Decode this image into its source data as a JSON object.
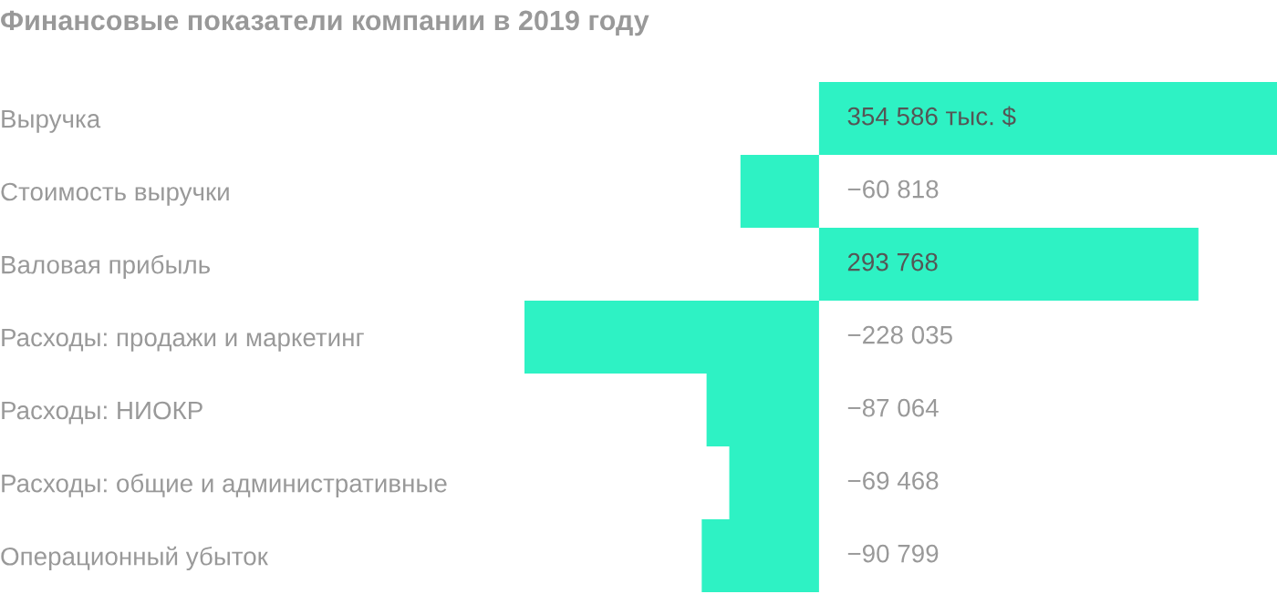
{
  "chart_data": {
    "type": "bar",
    "orientation": "horizontal",
    "title": "Финансовые показатели компании в 2019 году",
    "categories": [
      "Выручка",
      "Стоимость выручки",
      "Валовая прибыль",
      "Расходы: продажи и маркетинг",
      "Расходы: НИОКР",
      "Расходы: общие и административные",
      "Операционный убыток"
    ],
    "values": [
      354586,
      -60818,
      293768,
      -228035,
      -87064,
      -69468,
      -90799
    ],
    "value_labels": [
      "354 586 тыс. $",
      "−60 818",
      "293 768",
      "−228 035",
      "−87 064",
      "−69 468",
      "−90 799"
    ],
    "color": "#2ef2c4",
    "grid": false,
    "legend": false
  }
}
